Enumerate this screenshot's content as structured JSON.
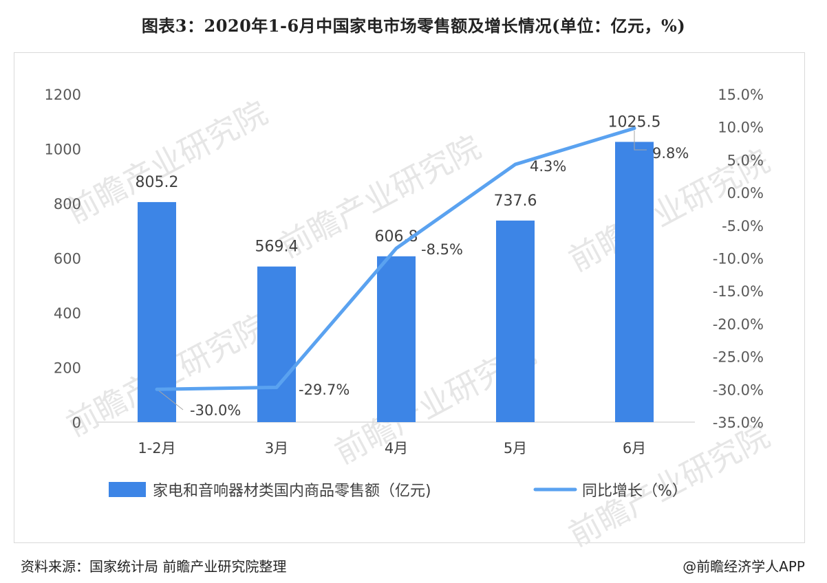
{
  "title": "图表3：2020年1-6月中国家电市场零售额及增长情况(单位：亿元，%)",
  "source": "资料来源：国家统计局 前瞻产业研究院整理",
  "credit": "@前瞻经济学人APP",
  "watermark": "前瞻产业研究院",
  "colors": {
    "bar": "#3d85e6",
    "line": "#5aa2f0",
    "grid": "#d9d9d9"
  },
  "chart_data": {
    "type": "bar",
    "categories": [
      "1-2月",
      "3月",
      "4月",
      "5月",
      "6月"
    ],
    "series": [
      {
        "name": "家电和音响器材类国内商品零售额（亿元)",
        "type": "bar",
        "axis": "left",
        "values": [
          805.2,
          569.4,
          606.8,
          737.6,
          1025.5
        ],
        "labels": [
          "805.2",
          "569.4",
          "606.8",
          "737.6",
          "1025.5"
        ]
      },
      {
        "name": "同比增长（%）",
        "type": "line",
        "axis": "right",
        "values": [
          -30.0,
          -29.7,
          -8.5,
          4.3,
          9.8
        ],
        "labels": [
          "-30.0%",
          "-29.7%",
          "-8.5%",
          "4.3%",
          "9.8%"
        ]
      }
    ],
    "y_left": {
      "min": 0,
      "max": 1200,
      "ticks": [
        "0",
        "200",
        "400",
        "600",
        "800",
        "1000",
        "1200"
      ]
    },
    "y_right": {
      "min": -35,
      "max": 15,
      "ticks": [
        "-35.0%",
        "-30.0%",
        "-25.0%",
        "-20.0%",
        "-15.0%",
        "-10.0%",
        "-5.0%",
        "0.0%",
        "5.0%",
        "10.0%",
        "15.0%"
      ]
    },
    "legend_position": "bottom",
    "grid": false
  }
}
